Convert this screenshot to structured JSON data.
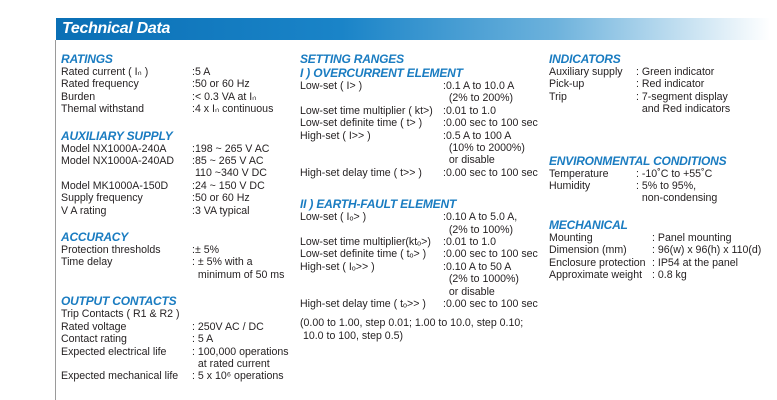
{
  "title": "Technical Data",
  "columns": [
    {
      "sections": [
        {
          "heading": "RATINGS",
          "rows": [
            {
              "label": "Rated current ( Iₙ )",
              "value": [
                ":5 A"
              ]
            },
            {
              "label": "Rated frequency",
              "value": [
                ":50 or 60 Hz"
              ]
            },
            {
              "label": "Burden",
              "value": [
                ":< 0.3 VA at Iₙ"
              ]
            },
            {
              "label": "Themal withstand",
              "value": [
                ":4 x Iₙ continuous"
              ]
            }
          ]
        },
        {
          "heading": "AUXILIARY SUPPLY",
          "rows": [
            {
              "label": "Model NX1000A-240A",
              "value": [
                ":198 ~ 265 V AC"
              ]
            },
            {
              "label": "Model NX1000A-240AD",
              "value": [
                ":85 ~ 265 V AC",
                " 110 ~340 V DC"
              ]
            },
            {
              "label": "Model MK1000A-150D",
              "value": [
                ":24 ~ 150 V DC"
              ]
            },
            {
              "label": "Supply frequency",
              "value": [
                ":50 or 60 Hz"
              ]
            },
            {
              "label": "V A rating",
              "value": [
                ":3 VA typical"
              ]
            }
          ]
        },
        {
          "heading": "ACCURACY",
          "rows": [
            {
              "label": "Protection thresholds",
              "value": [
                ":± 5%"
              ]
            },
            {
              "label": "Time delay",
              "value": [
                ": ± 5% with a",
                "  minimum of 50 ms"
              ]
            }
          ]
        },
        {
          "heading": "OUTPUT CONTACTS",
          "rows": [
            {
              "label": "Trip Contacts ( R1 & R2 )",
              "value": [
                ""
              ]
            },
            {
              "label": "Rated voltage",
              "value": [
                ": 250V AC / DC"
              ]
            },
            {
              "label": "Contact rating",
              "value": [
                ": 5 A"
              ]
            },
            {
              "label": "Expected electrical life",
              "value": [
                ": 100,000 operations",
                "  at rated current"
              ]
            },
            {
              "label": "Expected mechanical life",
              "value": [
                ": 5 x 10⁶ operations"
              ]
            }
          ]
        }
      ]
    },
    {
      "sections": [
        {
          "heading": "SETTING RANGES",
          "subheading": "I ) OVERCURRENT ELEMENT",
          "rows": [
            {
              "label": "Low-set ( I> )",
              "value": [
                ":0.1 A to 10.0 A",
                "  (2% to 200%)"
              ]
            },
            {
              "label": "Low-set time multiplier ( kt>)",
              "value": [
                ":0.01 to 1.0"
              ]
            },
            {
              "label": "Low-set definite time ( t> )",
              "value": [
                ":0.00 sec to 100 sec"
              ]
            },
            {
              "label": "High-set ( I>> )",
              "value": [
                ":0.5 A to 100 A",
                "  (10% to 2000%)",
                "  or disable"
              ]
            },
            {
              "label": "High-set delay time ( t>> )",
              "value": [
                ":0.00 sec to 100 sec"
              ]
            }
          ]
        },
        {
          "heading": "II ) EARTH-FAULT ELEMENT",
          "rows": [
            {
              "label": "Low-set ( Iₒ> )",
              "value": [
                ":0.10 A to 5.0 A,",
                "  (2% to 100%)"
              ]
            },
            {
              "label": "Low-set time multiplier(ktₒ>)",
              "value": [
                ":0.01 to 1.0"
              ]
            },
            {
              "label": "Low-set definite time ( tₒ> )",
              "value": [
                ":0.00 sec to 100 sec"
              ]
            },
            {
              "label": "High-set ( Iₒ>> )",
              "value": [
                ":0.10 A to 50 A",
                "  (2% to 1000%)",
                "  or disable"
              ]
            },
            {
              "label": "High-set delay time ( tₒ>> )",
              "value": [
                ":0.00 sec to 100 sec"
              ]
            }
          ],
          "note": [
            "(0.00 to 1.00, step 0.01; 1.00 to 10.0, step 0.10;",
            " 10.0 to 100, step 0.5)"
          ]
        }
      ]
    },
    {
      "sections": [
        {
          "heading": "INDICATORS",
          "rows": [
            {
              "label": "Auxiliary supply",
              "value": [
                ": Green indicator"
              ]
            },
            {
              "label": "Pick-up",
              "value": [
                ": Red indicator"
              ]
            },
            {
              "label": "Trip",
              "value": [
                ": 7-segment display",
                "  and Red indicators"
              ]
            }
          ]
        },
        {
          "heading": "ENVIRONMENTAL CONDITIONS",
          "rows": [
            {
              "label": "Temperature",
              "value": [
                ": -10˚C to +55˚C"
              ]
            },
            {
              "label": "Humidity",
              "value": [
                ": 5% to 95%,",
                "  non-condensing"
              ]
            }
          ]
        },
        {
          "heading": "MECHANICAL",
          "rows": [
            {
              "label": "Mounting",
              "value": [
                ": Panel mounting"
              ]
            },
            {
              "label": "Dimension (mm)",
              "value": [
                ": 96(w) x 96(h) x 110(d)"
              ]
            },
            {
              "label": "Enclosure protection",
              "value": [
                ": IP54 at the panel"
              ]
            },
            {
              "label": "Approximate weight",
              "value": [
                ": 0.8 kg"
              ]
            }
          ]
        }
      ]
    }
  ]
}
